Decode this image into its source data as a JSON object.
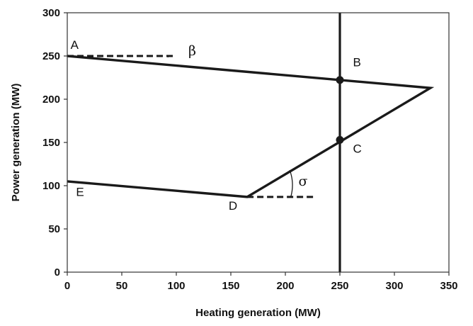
{
  "chart_data": {
    "type": "line",
    "title": "",
    "xlabel": "Heating generation (MW)",
    "ylabel": "Power generation (MW)",
    "xlim": [
      0,
      350
    ],
    "ylim": [
      0,
      300
    ],
    "xticks": [
      0,
      50,
      100,
      150,
      200,
      250,
      300,
      350
    ],
    "yticks": [
      0,
      50,
      100,
      150,
      200,
      250,
      300
    ],
    "grid": false,
    "series": [
      {
        "points": [
          {
            "x": 0,
            "y": 250
          },
          {
            "x": 333,
            "y": 213
          },
          {
            "x": 165,
            "y": 87
          },
          {
            "x": 0,
            "y": 105
          }
        ],
        "closed": false
      }
    ],
    "vertical_line": {
      "x": 250,
      "y_range": [
        0,
        300
      ]
    },
    "reference_lines": [
      {
        "x": [
          0,
          100
        ],
        "y": 250,
        "style": "dashed"
      },
      {
        "x": [
          165,
          228
        ],
        "y": 87,
        "style": "dashed"
      }
    ],
    "markers": [
      {
        "x": 250,
        "y": 222.2
      },
      {
        "x": 250,
        "y": 153
      }
    ],
    "point_labels": [
      {
        "text": "A",
        "x": 3,
        "y": 258
      },
      {
        "text": "B",
        "x": 262,
        "y": 238
      },
      {
        "text": "C",
        "x": 262,
        "y": 138
      },
      {
        "text": "D",
        "x": 148,
        "y": 72
      },
      {
        "text": "E",
        "x": 8,
        "y": 88
      }
    ],
    "angle_labels": [
      {
        "text": "β",
        "x": 111,
        "y": 251,
        "arc": {
          "center": [
            0,
            250
          ],
          "radius": 93,
          "from": 250,
          "to": 248.5
        }
      },
      {
        "text": "σ",
        "x": 212,
        "y": 100,
        "arc": {
          "center": [
            165,
            87
          ],
          "radius": 40,
          "from": 87,
          "to": 118
        }
      }
    ]
  }
}
